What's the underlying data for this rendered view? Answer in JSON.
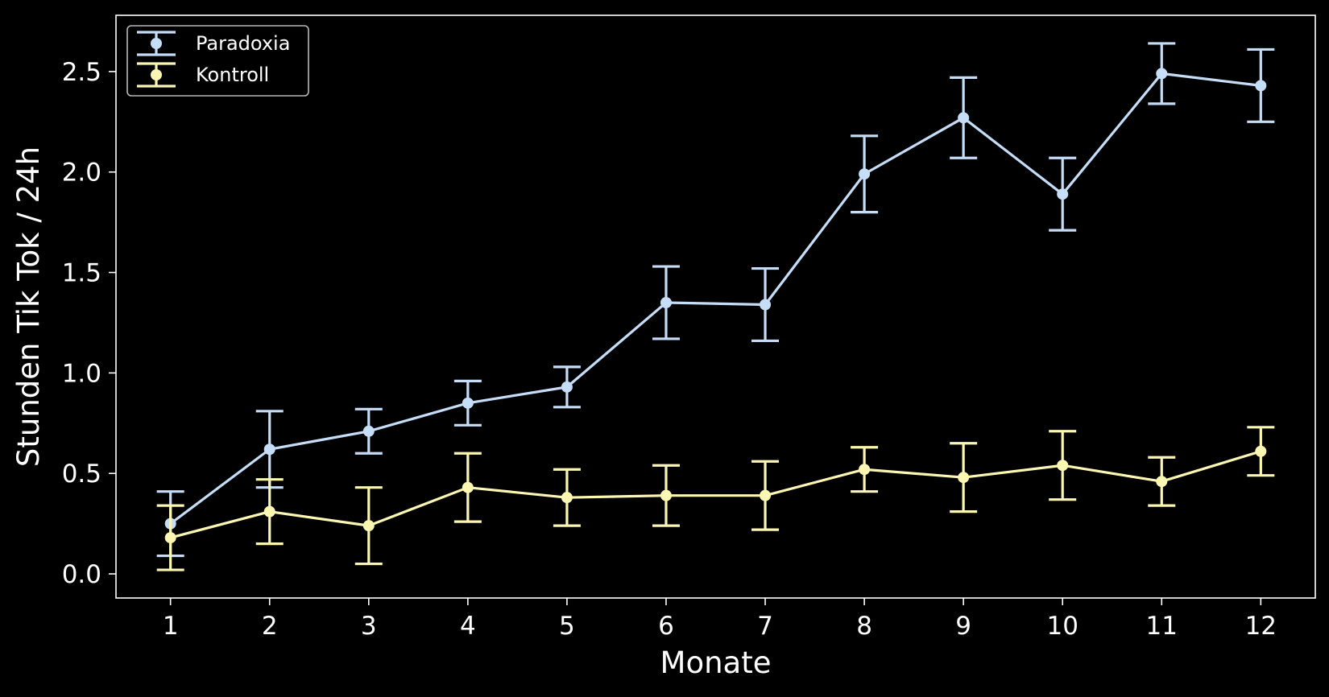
{
  "chart_data": {
    "type": "line",
    "title": "",
    "xlabel": "Monate",
    "ylabel": "Stunden Tik Tok / 24h",
    "x": [
      1,
      2,
      3,
      4,
      5,
      6,
      7,
      8,
      9,
      10,
      11,
      12
    ],
    "xlim": [
      0.45,
      12.55
    ],
    "ylim": [
      -0.12,
      2.78
    ],
    "yticks": [
      "0.0",
      "0.5",
      "1.0",
      "1.5",
      "2.0",
      "2.5"
    ],
    "xticks": [
      "1",
      "2",
      "3",
      "4",
      "5",
      "6",
      "7",
      "8",
      "9",
      "10",
      "11",
      "12"
    ],
    "grid": false,
    "legend_position": "top-left",
    "series": [
      {
        "name": "Paradoxia",
        "color": "#c6ddf7",
        "values": [
          0.25,
          0.62,
          0.71,
          0.85,
          0.93,
          1.35,
          1.34,
          1.99,
          2.27,
          1.89,
          2.49,
          2.43
        ],
        "errors": [
          0.16,
          0.19,
          0.11,
          0.11,
          0.1,
          0.18,
          0.18,
          0.19,
          0.2,
          0.18,
          0.15,
          0.18
        ]
      },
      {
        "name": "Kontroll",
        "color": "#fbf6b2",
        "values": [
          0.18,
          0.31,
          0.24,
          0.43,
          0.38,
          0.39,
          0.39,
          0.52,
          0.48,
          0.54,
          0.46,
          0.61
        ],
        "errors": [
          0.16,
          0.16,
          0.19,
          0.17,
          0.14,
          0.15,
          0.17,
          0.11,
          0.17,
          0.17,
          0.12,
          0.12
        ]
      }
    ]
  }
}
